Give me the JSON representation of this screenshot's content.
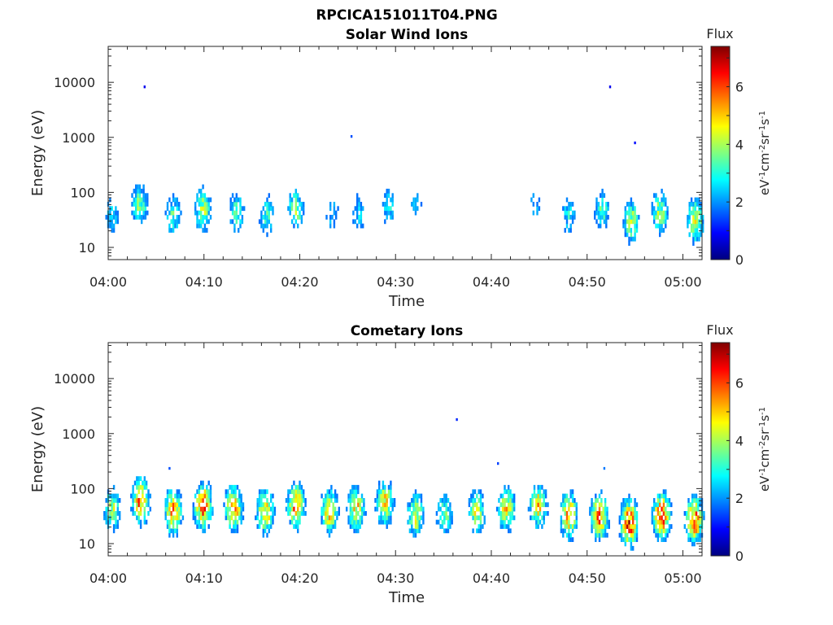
{
  "figure_title": "RPCICA151011T04.PNG",
  "chart_data": [
    {
      "type": "heatmap",
      "title": "Solar Wind Ions",
      "xlabel": "Time",
      "ylabel": "Energy (eV)",
      "x_ticks": [
        "04:00",
        "04:10",
        "04:20",
        "04:30",
        "04:40",
        "04:50",
        "05:00"
      ],
      "x_range_minutes": [
        0,
        62
      ],
      "y_scale": "log",
      "y_ticks": [
        "10",
        "100",
        "1000",
        "10000"
      ],
      "y_range": [
        6,
        45000
      ],
      "grid": false,
      "colorbar": {
        "label": "Flux",
        "unit_label": "eV-1cm-2sr-1s-1",
        "ticks": [
          "0",
          "2",
          "4",
          "6"
        ],
        "range": [
          0,
          7.4
        ],
        "colormap": "jet"
      },
      "bursts": [
        {
          "t": 0.3,
          "e": 35,
          "f": 2.6
        },
        {
          "t": 3.2,
          "e": 55,
          "f": 3.8
        },
        {
          "t": 6.7,
          "e": 35,
          "f": 3.4
        },
        {
          "t": 9.8,
          "e": 45,
          "f": 4.2
        },
        {
          "t": 13.3,
          "e": 40,
          "f": 3.4
        },
        {
          "t": 16.5,
          "e": 35,
          "f": 3.2
        },
        {
          "t": 19.5,
          "e": 45,
          "f": 3.8
        },
        {
          "t": 23.3,
          "e": 38,
          "f": 2.4
        },
        {
          "t": 26.1,
          "e": 40,
          "f": 2.6
        },
        {
          "t": 29.2,
          "e": 50,
          "f": 2.8
        },
        {
          "t": 32.0,
          "e": 60,
          "f": 2.2
        },
        {
          "t": 44.5,
          "e": 55,
          "f": 2.2
        },
        {
          "t": 48.0,
          "e": 35,
          "f": 2.8
        },
        {
          "t": 51.5,
          "e": 45,
          "f": 3.4
        },
        {
          "t": 54.5,
          "e": 28,
          "f": 4.2
        },
        {
          "t": 57.5,
          "e": 40,
          "f": 4.0
        },
        {
          "t": 61.2,
          "e": 28,
          "f": 4.6
        }
      ],
      "isolated_points": [
        {
          "t": 3.7,
          "e": 7800,
          "f": 0.8
        },
        {
          "t": 25.3,
          "e": 980,
          "f": 1.5
        },
        {
          "t": 52.3,
          "e": 7800,
          "f": 0.8
        },
        {
          "t": 54.9,
          "e": 750,
          "f": 1.0
        }
      ]
    },
    {
      "type": "heatmap",
      "title": "Cometary Ions",
      "xlabel": "Time",
      "ylabel": "Energy (eV)",
      "x_ticks": [
        "04:00",
        "04:10",
        "04:20",
        "04:30",
        "04:40",
        "04:50",
        "05:00"
      ],
      "x_range_minutes": [
        0,
        62
      ],
      "y_scale": "log",
      "y_ticks": [
        "10",
        "100",
        "1000",
        "10000"
      ],
      "y_range": [
        6,
        45000
      ],
      "grid": false,
      "colorbar": {
        "label": "Flux",
        "unit_label": "eV-1cm-2sr-1s-1",
        "ticks": [
          "0",
          "2",
          "4",
          "6"
        ],
        "range": [
          0,
          7.4
        ],
        "colormap": "jet"
      },
      "bursts": [
        {
          "t": 0.3,
          "e": 40,
          "f": 4.2
        },
        {
          "t": 3.3,
          "e": 55,
          "f": 5.8
        },
        {
          "t": 6.7,
          "e": 35,
          "f": 5.6
        },
        {
          "t": 9.8,
          "e": 45,
          "f": 6.2
        },
        {
          "t": 13.0,
          "e": 40,
          "f": 5.6
        },
        {
          "t": 16.3,
          "e": 35,
          "f": 5.2
        },
        {
          "t": 19.5,
          "e": 45,
          "f": 5.8
        },
        {
          "t": 23.0,
          "e": 35,
          "f": 5.0
        },
        {
          "t": 25.8,
          "e": 40,
          "f": 5.0
        },
        {
          "t": 28.8,
          "e": 50,
          "f": 5.0
        },
        {
          "t": 32.0,
          "e": 30,
          "f": 4.6
        },
        {
          "t": 35.0,
          "e": 30,
          "f": 3.8
        },
        {
          "t": 38.4,
          "e": 35,
          "f": 4.4
        },
        {
          "t": 41.5,
          "e": 40,
          "f": 4.8
        },
        {
          "t": 44.8,
          "e": 45,
          "f": 5.0
        },
        {
          "t": 48.0,
          "e": 30,
          "f": 5.6
        },
        {
          "t": 51.2,
          "e": 28,
          "f": 6.0
        },
        {
          "t": 54.3,
          "e": 22,
          "f": 6.6
        },
        {
          "t": 57.7,
          "e": 30,
          "f": 6.2
        },
        {
          "t": 61.1,
          "e": 25,
          "f": 6.2
        }
      ],
      "isolated_points": [
        {
          "t": 36.3,
          "e": 1700,
          "f": 1.2
        },
        {
          "t": 6.3,
          "e": 220,
          "f": 1.5
        },
        {
          "t": 40.6,
          "e": 270,
          "f": 1.4
        },
        {
          "t": 51.7,
          "e": 220,
          "f": 1.8
        }
      ]
    }
  ]
}
